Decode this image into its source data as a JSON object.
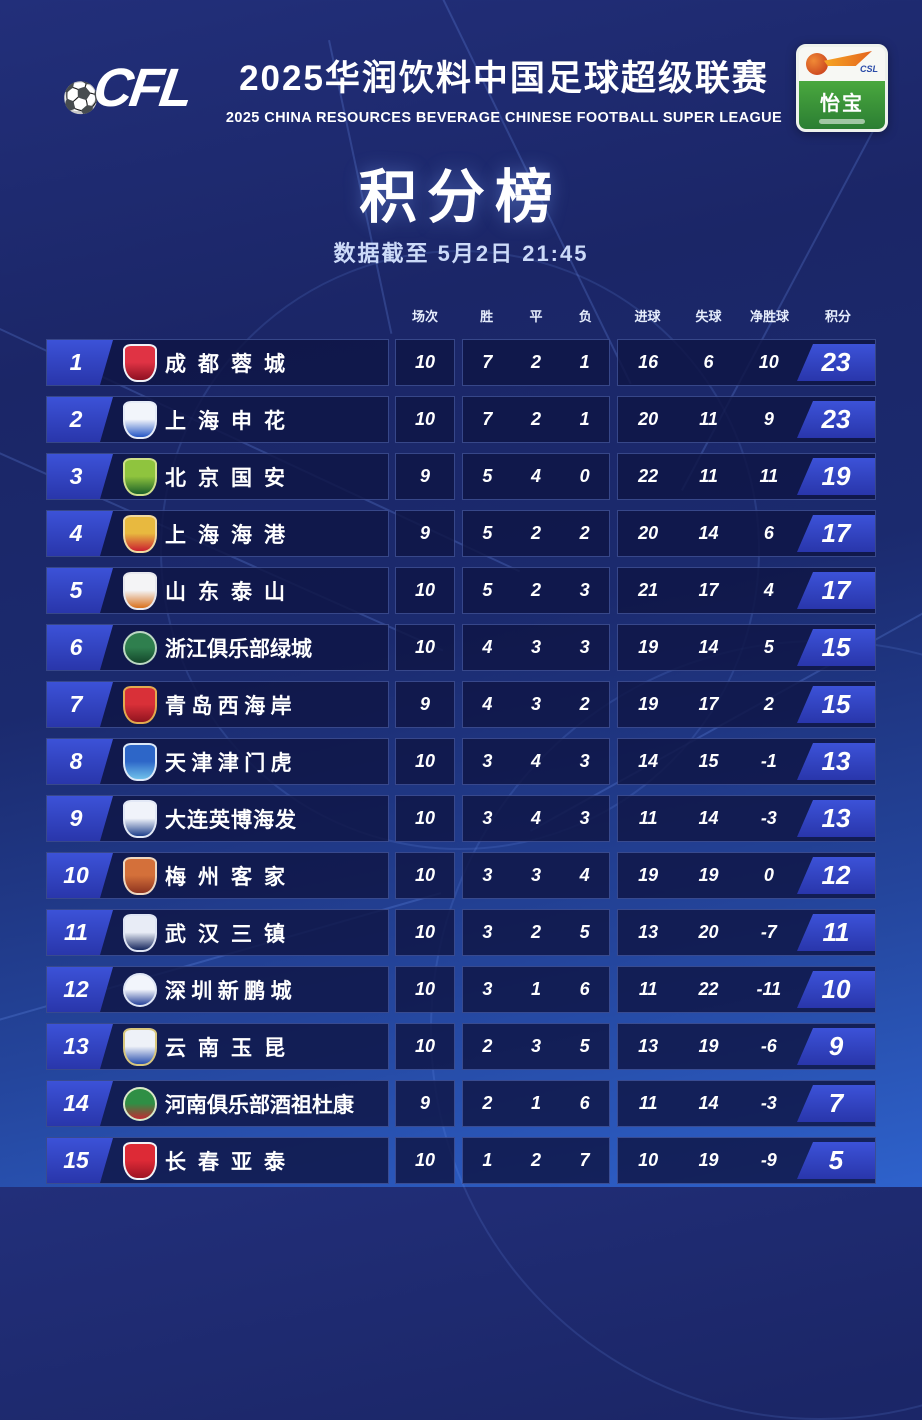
{
  "header": {
    "league_logo_text": "CFL",
    "title_cn": "2025华润饮料中国足球超级联赛",
    "title_en": "2025 CHINA RESOURCES BEVERAGE CHINESE FOOTBALL SUPER LEAGUE",
    "sponsor": {
      "brand_cn": "怡宝",
      "league_abbr": "CSL"
    }
  },
  "board": {
    "title": "积分榜",
    "subtitle": "数据截至 5月2日 21:45"
  },
  "theme": {
    "background_top": "#1b2667",
    "background_bottom": "#2e62cc",
    "badge_blue": "#3547cd",
    "row_panel": "#141c4e",
    "sponsor_green": "#3c9539"
  },
  "chart_data": {
    "type": "table",
    "title": "积分榜",
    "subtitle": "数据截至 5月2日 21:45",
    "columns": [
      "场次",
      "胜",
      "平",
      "负",
      "进球",
      "失球",
      "净胜球",
      "积分"
    ],
    "rows": [
      {
        "rank": 1,
        "team": "成都蓉城",
        "played": 10,
        "won": 7,
        "drawn": 2,
        "lost": 1,
        "goals_for": 16,
        "goals_against": 6,
        "goal_diff": 10,
        "points": 23,
        "logo": {
          "shape": "shield",
          "colors": [
            "#e03344",
            "#8e1022"
          ],
          "border": "#f0f2f8"
        }
      },
      {
        "rank": 2,
        "team": "上海申花",
        "played": 10,
        "won": 7,
        "drawn": 2,
        "lost": 1,
        "goals_for": 20,
        "goals_against": 11,
        "goal_diff": 9,
        "points": 23,
        "logo": {
          "shape": "shield",
          "colors": [
            "#f2f5fb",
            "#2557c4"
          ],
          "border": "#e6ecf8"
        }
      },
      {
        "rank": 3,
        "team": "北京国安",
        "played": 9,
        "won": 5,
        "drawn": 4,
        "lost": 0,
        "goals_for": 22,
        "goals_against": 11,
        "goal_diff": 11,
        "points": 19,
        "logo": {
          "shape": "shield",
          "colors": [
            "#8fc43e",
            "#1c6129"
          ],
          "border": "#cfe08a"
        }
      },
      {
        "rank": 4,
        "team": "上海海港",
        "played": 9,
        "won": 5,
        "drawn": 2,
        "lost": 2,
        "goals_for": 20,
        "goals_against": 14,
        "goal_diff": 6,
        "points": 17,
        "logo": {
          "shape": "shield",
          "colors": [
            "#e8b93f",
            "#cb2030"
          ],
          "border": "#f0d9a0"
        }
      },
      {
        "rank": 5,
        "team": "山东泰山",
        "played": 10,
        "won": 5,
        "drawn": 2,
        "lost": 3,
        "goals_for": 21,
        "goals_against": 17,
        "goal_diff": 4,
        "points": 17,
        "logo": {
          "shape": "shield",
          "colors": [
            "#f4f4f6",
            "#d9701c"
          ],
          "border": "#e8e8ee"
        }
      },
      {
        "rank": 6,
        "team": "浙江俱乐部绿城",
        "played": 10,
        "won": 4,
        "drawn": 3,
        "lost": 3,
        "goals_for": 19,
        "goals_against": 14,
        "goal_diff": 5,
        "points": 15,
        "logo": {
          "shape": "circle",
          "colors": [
            "#2f7f4e",
            "#14472b"
          ],
          "border": "#bcd8c4"
        }
      },
      {
        "rank": 7,
        "team": "青岛西海岸",
        "played": 9,
        "won": 4,
        "drawn": 3,
        "lost": 2,
        "goals_for": 19,
        "goals_against": 17,
        "goal_diff": 2,
        "points": 15,
        "logo": {
          "shape": "shield",
          "colors": [
            "#d93038",
            "#911420"
          ],
          "border": "#e3aa4e"
        }
      },
      {
        "rank": 8,
        "team": "天津津门虎",
        "played": 10,
        "won": 3,
        "drawn": 4,
        "lost": 3,
        "goals_for": 14,
        "goals_against": 15,
        "goal_diff": -1,
        "points": 13,
        "logo": {
          "shape": "shield",
          "colors": [
            "#2d66c8",
            "#6fc0ea"
          ],
          "border": "#dce8f8"
        }
      },
      {
        "rank": 9,
        "team": "大连英博海发",
        "played": 10,
        "won": 3,
        "drawn": 4,
        "lost": 3,
        "goals_for": 11,
        "goals_against": 14,
        "goal_diff": -3,
        "points": 13,
        "logo": {
          "shape": "shield",
          "colors": [
            "#f0f3fa",
            "#1e3f8a"
          ],
          "border": "#e2e8f6"
        }
      },
      {
        "rank": 10,
        "team": "梅州客家",
        "played": 10,
        "won": 3,
        "drawn": 3,
        "lost": 4,
        "goals_for": 19,
        "goals_against": 19,
        "goal_diff": 0,
        "points": 12,
        "logo": {
          "shape": "shield",
          "colors": [
            "#d4703a",
            "#8e3420"
          ],
          "border": "#f0d8c0"
        }
      },
      {
        "rank": 11,
        "team": "武汉三镇",
        "played": 10,
        "won": 3,
        "drawn": 2,
        "lost": 5,
        "goals_for": 13,
        "goals_against": 20,
        "goal_diff": -7,
        "points": 11,
        "logo": {
          "shape": "shield",
          "colors": [
            "#e8ecf6",
            "#16275e"
          ],
          "border": "#dfe5f4"
        }
      },
      {
        "rank": 12,
        "team": "深圳新鹏城",
        "played": 10,
        "won": 3,
        "drawn": 1,
        "lost": 6,
        "goals_for": 11,
        "goals_against": 22,
        "goal_diff": -11,
        "points": 10,
        "logo": {
          "shape": "circle",
          "colors": [
            "#f2f5fc",
            "#28439a"
          ],
          "border": "#dfe6f6"
        }
      },
      {
        "rank": 13,
        "team": "云南玉昆",
        "played": 10,
        "won": 2,
        "drawn": 3,
        "lost": 5,
        "goals_for": 13,
        "goals_against": 19,
        "goal_diff": -6,
        "points": 9,
        "logo": {
          "shape": "shield",
          "colors": [
            "#eef1f8",
            "#2a50ae"
          ],
          "border": "#d8c77e"
        }
      },
      {
        "rank": 14,
        "team": "河南俱乐部酒祖杜康",
        "played": 9,
        "won": 2,
        "drawn": 1,
        "lost": 6,
        "goals_for": 11,
        "goals_against": 14,
        "goal_diff": -3,
        "points": 7,
        "logo": {
          "shape": "circle",
          "colors": [
            "#2f8f45",
            "#bf2b33"
          ],
          "border": "#d8e8c8"
        }
      },
      {
        "rank": 15,
        "team": "长春亚泰",
        "played": 10,
        "won": 1,
        "drawn": 2,
        "lost": 7,
        "goals_for": 10,
        "goals_against": 19,
        "goal_diff": -9,
        "points": 5,
        "logo": {
          "shape": "shield",
          "colors": [
            "#dd2a36",
            "#9e1424"
          ],
          "border": "#f2f3f7"
        }
      }
    ]
  }
}
